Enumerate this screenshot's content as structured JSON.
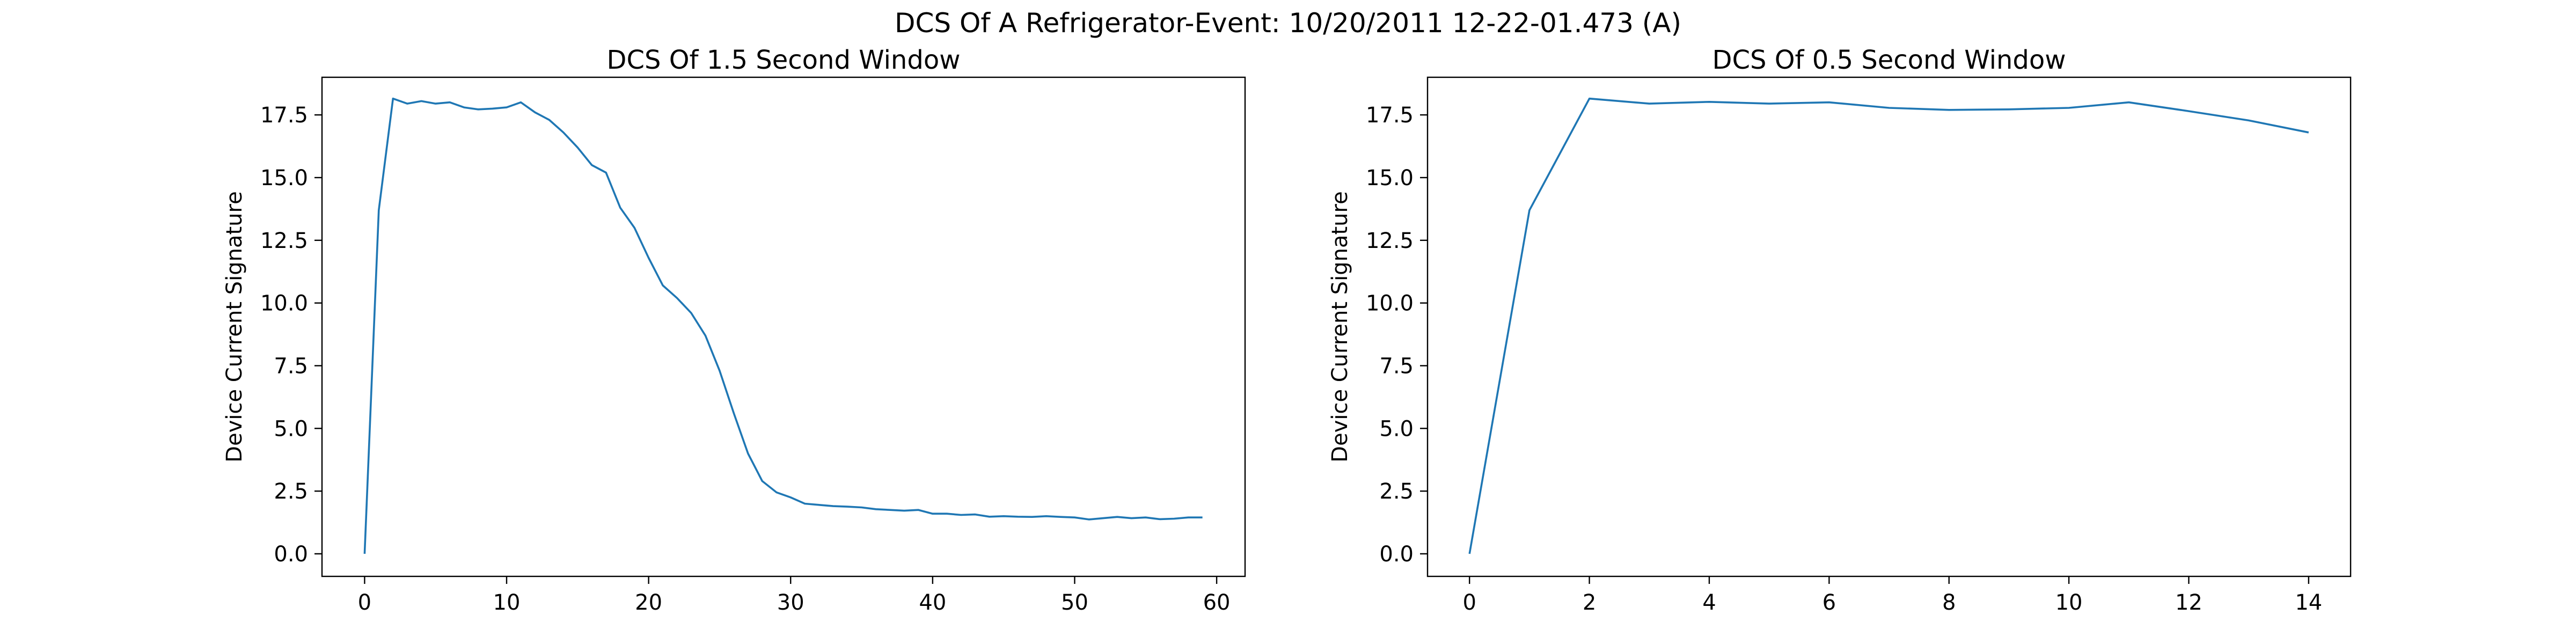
{
  "figure": {
    "suptitle": "DCS Of A Refrigerator-Event: 10/20/2011 12-22-01.473 (A)"
  },
  "chart_data": [
    {
      "type": "line",
      "title": "DCS Of 1.5 Second Window",
      "xlabel": "",
      "ylabel": "Device Current Signature",
      "xlim": [
        -3,
        62
      ],
      "ylim": [
        -0.9,
        19.0
      ],
      "xticks": [
        0,
        10,
        20,
        30,
        40,
        50,
        60
      ],
      "xtick_labels": [
        "0",
        "10",
        "20",
        "30",
        "40",
        "50",
        "60"
      ],
      "yticks": [
        0.0,
        2.5,
        5.0,
        7.5,
        10.0,
        12.5,
        15.0,
        17.5
      ],
      "ytick_labels": [
        "0.0",
        "2.5",
        "5.0",
        "7.5",
        "10.0",
        "12.5",
        "15.0",
        "17.5"
      ],
      "grid": false,
      "color": "#1f77b4",
      "x": [
        0,
        1,
        2,
        3,
        4,
        5,
        6,
        7,
        8,
        9,
        10,
        11,
        12,
        13,
        14,
        15,
        16,
        17,
        18,
        19,
        20,
        21,
        22,
        23,
        24,
        25,
        26,
        27,
        28,
        29,
        30,
        31,
        32,
        33,
        34,
        35,
        36,
        37,
        38,
        39,
        40,
        41,
        42,
        43,
        44,
        45,
        46,
        47,
        48,
        49,
        50,
        51,
        52,
        53,
        54,
        55,
        56,
        57,
        58,
        59
      ],
      "y": [
        0.0,
        13.7,
        18.15,
        17.95,
        18.05,
        17.95,
        18.0,
        17.8,
        17.72,
        17.75,
        17.8,
        18.0,
        17.6,
        17.3,
        16.8,
        16.2,
        15.5,
        15.2,
        13.8,
        13.0,
        11.8,
        10.7,
        10.2,
        9.6,
        8.7,
        7.3,
        5.6,
        4.0,
        2.9,
        2.45,
        2.25,
        2.0,
        1.95,
        1.9,
        1.88,
        1.85,
        1.78,
        1.75,
        1.72,
        1.75,
        1.6,
        1.6,
        1.55,
        1.57,
        1.48,
        1.5,
        1.48,
        1.47,
        1.5,
        1.47,
        1.45,
        1.37,
        1.42,
        1.47,
        1.42,
        1.45,
        1.38,
        1.4,
        1.45,
        1.45
      ]
    },
    {
      "type": "line",
      "title": "DCS Of 0.5 Second Window",
      "xlabel": "",
      "ylabel": "Device Current Signature",
      "xlim": [
        -0.7,
        14.7
      ],
      "ylim": [
        -0.9,
        19.0
      ],
      "xticks": [
        0,
        2,
        4,
        6,
        8,
        10,
        12,
        14
      ],
      "xtick_labels": [
        "0",
        "2",
        "4",
        "6",
        "8",
        "10",
        "12",
        "14"
      ],
      "yticks": [
        0.0,
        2.5,
        5.0,
        7.5,
        10.0,
        12.5,
        15.0,
        17.5
      ],
      "ytick_labels": [
        "0.0",
        "2.5",
        "5.0",
        "7.5",
        "10.0",
        "12.5",
        "15.0",
        "17.5"
      ],
      "grid": false,
      "color": "#1f77b4",
      "x": [
        0,
        1,
        2,
        3,
        4,
        5,
        6,
        7,
        8,
        9,
        10,
        11,
        12,
        13,
        14
      ],
      "y": [
        0.0,
        13.7,
        18.15,
        17.95,
        18.02,
        17.95,
        18.0,
        17.78,
        17.7,
        17.72,
        17.78,
        18.0,
        17.65,
        17.28,
        16.8
      ]
    }
  ]
}
